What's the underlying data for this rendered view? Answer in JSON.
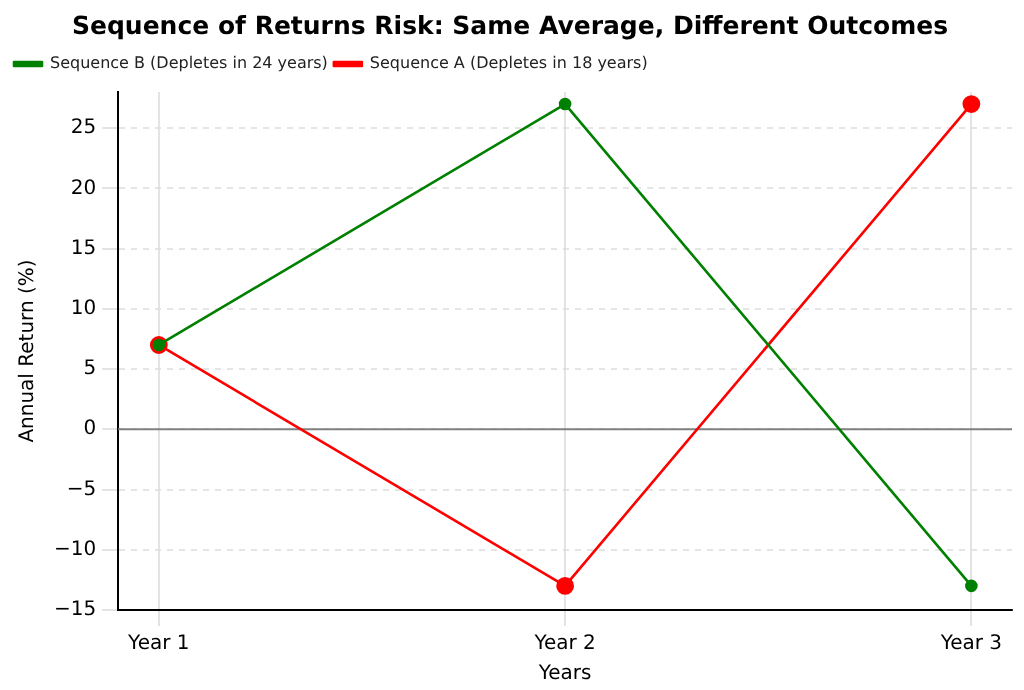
{
  "chart_data": {
    "type": "line",
    "title": "Sequence of Returns Risk: Same Average, Different Outcomes",
    "xlabel": "Years",
    "ylabel": "Annual Return (%)",
    "categories": [
      "Year 1",
      "Year 2",
      "Year 3"
    ],
    "series": [
      {
        "name": "Sequence A (Depletes in 18 years)",
        "color": "#ff0000",
        "values": [
          7,
          -13,
          27
        ]
      },
      {
        "name": "Sequence B (Depletes in 24 years)",
        "color": "#008000",
        "values": [
          7,
          27,
          -13
        ]
      }
    ],
    "ylim": [
      -15,
      28
    ],
    "yticks": [
      -15,
      -10,
      -5,
      0,
      5,
      10,
      15,
      20,
      25
    ],
    "ref_lines": [
      {
        "axis": "y",
        "value": 0,
        "color": "#808080"
      }
    ],
    "grid": true,
    "legend": "top left",
    "marker": "circle",
    "line_style": "solid"
  }
}
